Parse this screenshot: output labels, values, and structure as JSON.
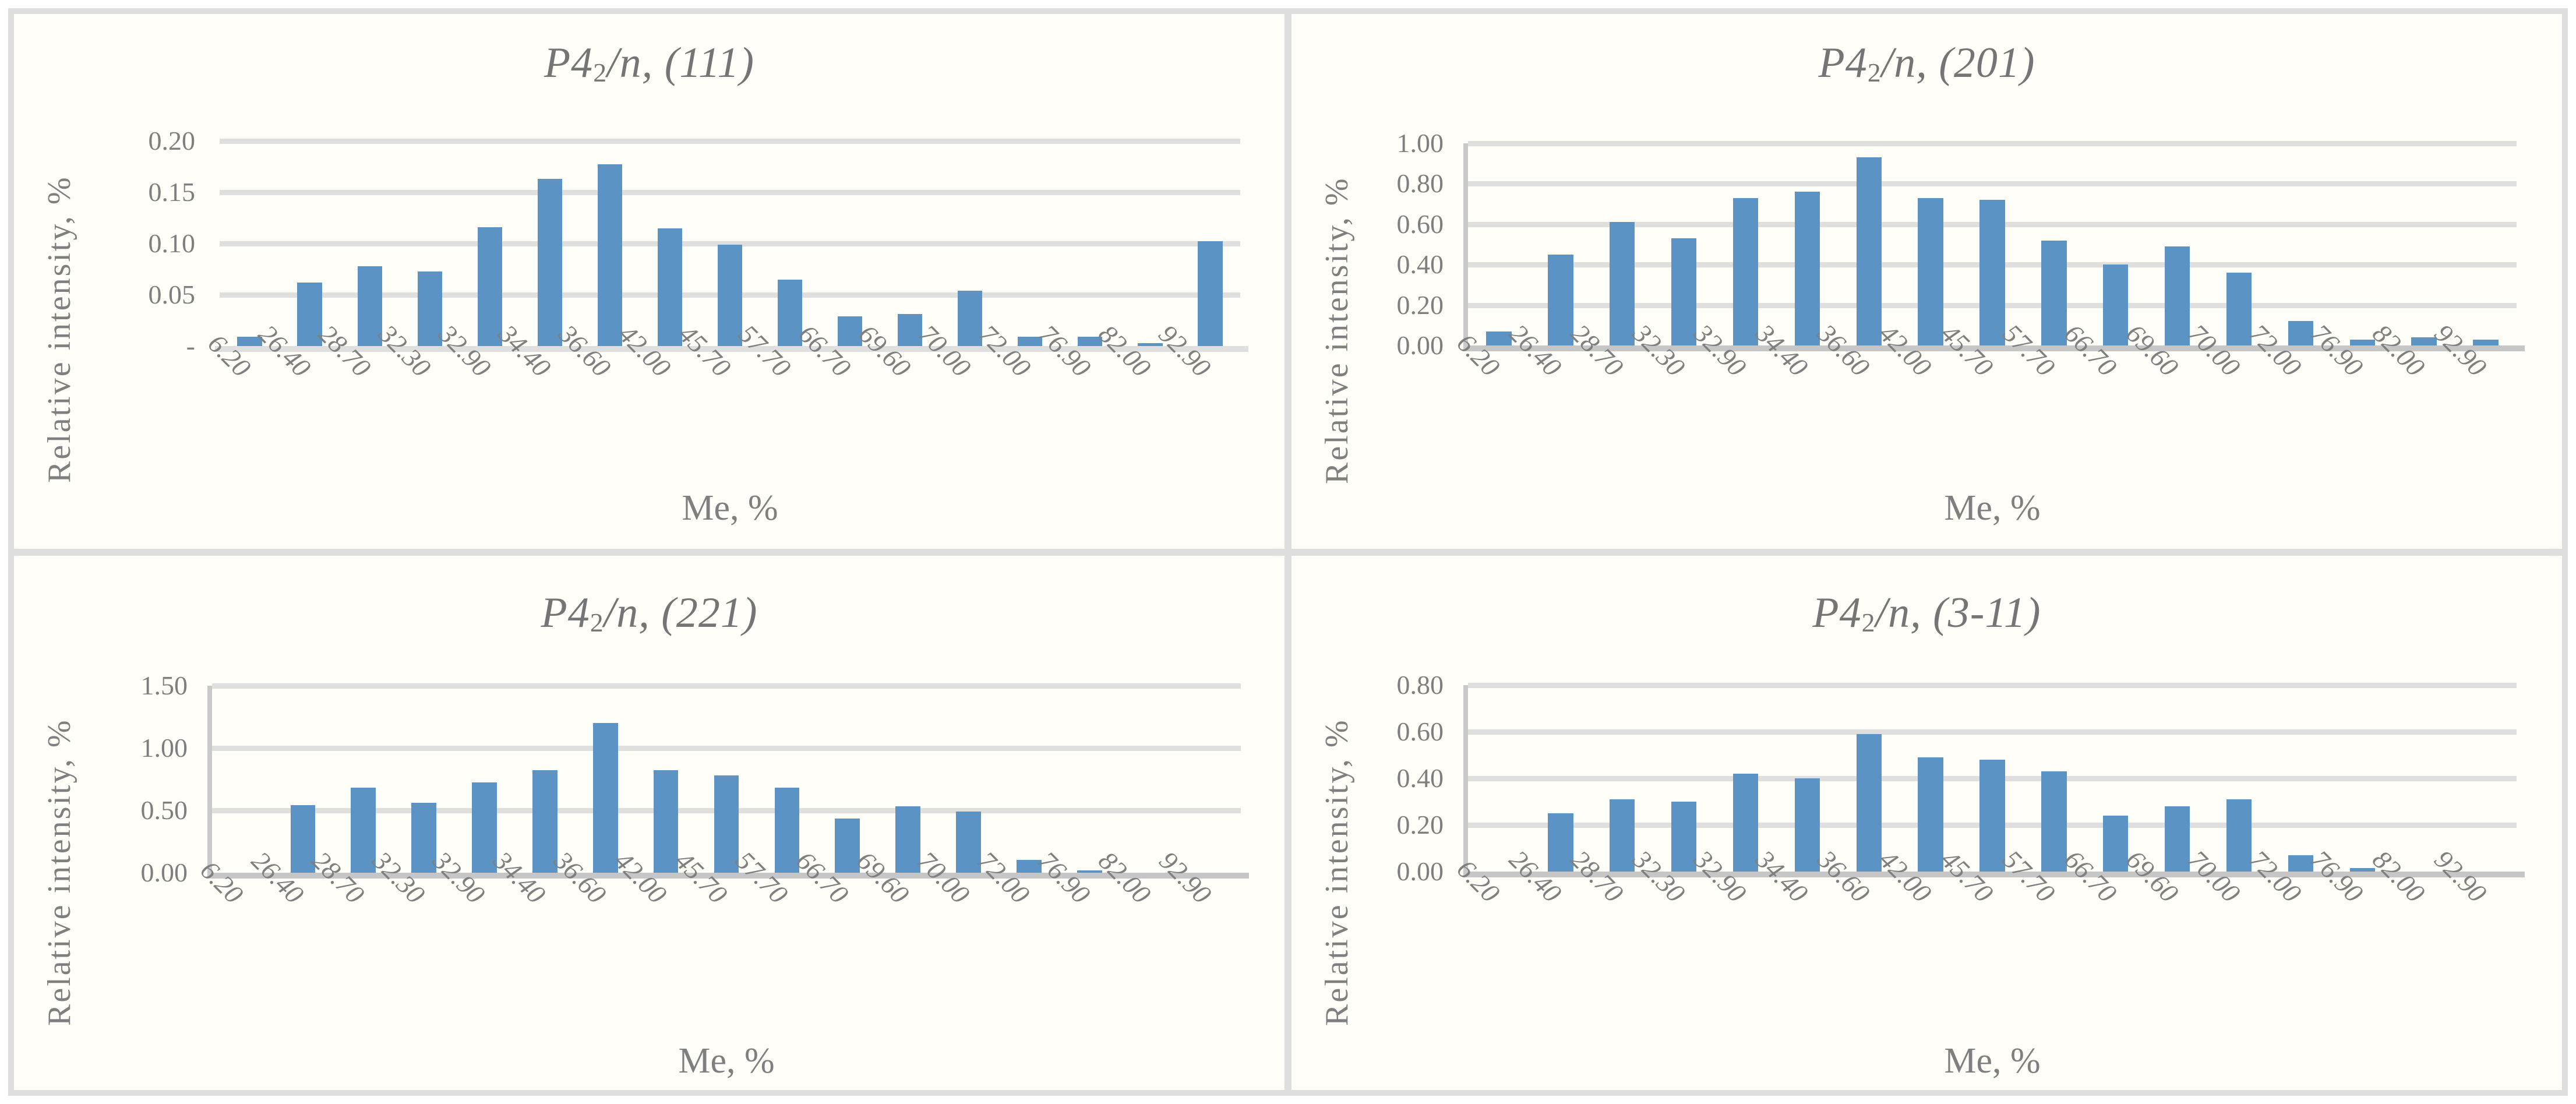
{
  "figure": {
    "colors": {
      "bar": "#5A93C4",
      "grid": "#DFDFDE",
      "baseline": "#C6C6C6",
      "axis_line": "#C9C9C9",
      "frame": "#DEDEDE",
      "text": "#7F7F7F",
      "title_text": "#757575",
      "panel_bg": "#FFFEF8"
    }
  },
  "chart_data": [
    {
      "type": "bar",
      "title": "P4₂/n, (111)",
      "title_parts": {
        "italic_prefix": "P4",
        "subscript": "2",
        "italic_mid": "/n",
        "suffix": ", (111)"
      },
      "ylabel": "Relative intensity, %",
      "xlabel": "Me, %",
      "ylim": [
        0,
        0.2
      ],
      "ytick_step": 0.05,
      "ytick_labels": [
        "0.20",
        "0.15",
        "0.10",
        "0.05",
        "-"
      ],
      "grid": true,
      "legend": "none",
      "y_axis_line": false,
      "baseline_dark": false,
      "categories": [
        "6.20",
        "26.40",
        "28.70",
        "32.30",
        "32.90",
        "34.40",
        "36.60",
        "42.00",
        "45.70",
        "57.70",
        "66.70",
        "69.60",
        "70.00",
        "72.00",
        "76.90",
        "82.00",
        "92.90"
      ],
      "values": [
        0.009,
        0.062,
        0.078,
        0.073,
        0.116,
        0.163,
        0.177,
        0.115,
        0.099,
        0.065,
        0.029,
        0.031,
        0.054,
        0.009,
        0.009,
        0.003,
        0.102
      ]
    },
    {
      "type": "bar",
      "title": "P4₂/n, (201)",
      "title_parts": {
        "italic_prefix": "P4",
        "subscript": "2",
        "italic_mid": "/n",
        "suffix": ", (201)"
      },
      "ylabel": "Relative intensity, %",
      "xlabel": "Me, %",
      "ylim": [
        0,
        1.0
      ],
      "ytick_step": 0.2,
      "ytick_labels": [
        "1.00",
        "0.80",
        "0.60",
        "0.40",
        "0.20",
        "0.00"
      ],
      "grid": true,
      "legend": "none",
      "y_axis_line": true,
      "baseline_dark": true,
      "categories": [
        "6.20",
        "26.40",
        "28.70",
        "32.30",
        "32.90",
        "34.40",
        "36.60",
        "42.00",
        "45.70",
        "57.70",
        "66.70",
        "69.60",
        "70.00",
        "72.00",
        "76.90",
        "82.00",
        "92.90"
      ],
      "values": [
        0.07,
        0.45,
        0.61,
        0.53,
        0.73,
        0.76,
        0.93,
        0.73,
        0.72,
        0.52,
        0.4,
        0.49,
        0.36,
        0.12,
        0.03,
        0.04,
        0.03
      ]
    },
    {
      "type": "bar",
      "title": "P4₂/n, (221)",
      "title_parts": {
        "italic_prefix": "P4",
        "subscript": "2",
        "italic_mid": "/n",
        "suffix": ", (221)"
      },
      "ylabel": "Relative intensity, %",
      "xlabel": "Me, %",
      "ylim": [
        0,
        1.5
      ],
      "ytick_step": 0.5,
      "ytick_labels": [
        "1.50",
        "1.00",
        "0.50",
        "0.00"
      ],
      "grid": true,
      "legend": "none",
      "y_axis_line": true,
      "baseline_dark": true,
      "categories": [
        "6.20",
        "26.40",
        "28.70",
        "32.30",
        "32.90",
        "34.40",
        "36.60",
        "42.00",
        "45.70",
        "57.70",
        "66.70",
        "69.60",
        "70.00",
        "72.00",
        "76.90",
        "82.00",
        "92.90"
      ],
      "values": [
        0,
        0.54,
        0.68,
        0.56,
        0.72,
        0.82,
        1.2,
        0.82,
        0.78,
        0.68,
        0.43,
        0.53,
        0.49,
        0.1,
        0.015,
        0,
        0
      ]
    },
    {
      "type": "bar",
      "title": "P4₂/n, (3-11)",
      "title_parts": {
        "italic_prefix": "P4",
        "subscript": "2",
        "italic_mid": "/n",
        "suffix": ", (3-11)"
      },
      "ylabel": "Relative intensity, %",
      "xlabel": "Me, %",
      "ylim": [
        0,
        0.8
      ],
      "ytick_step": 0.2,
      "ytick_labels": [
        "0.80",
        "0.60",
        "0.40",
        "0.20",
        "0.00"
      ],
      "grid": true,
      "legend": "none",
      "y_axis_line": true,
      "baseline_dark": true,
      "categories": [
        "6.20",
        "26.40",
        "28.70",
        "32.30",
        "32.90",
        "34.40",
        "36.60",
        "42.00",
        "45.70",
        "57.70",
        "66.70",
        "69.60",
        "70.00",
        "72.00",
        "76.90",
        "82.00",
        "92.90"
      ],
      "values": [
        0,
        0.25,
        0.31,
        0.3,
        0.42,
        0.4,
        0.59,
        0.49,
        0.48,
        0.43,
        0.24,
        0.28,
        0.31,
        0.07,
        0.015,
        0,
        0
      ]
    }
  ]
}
